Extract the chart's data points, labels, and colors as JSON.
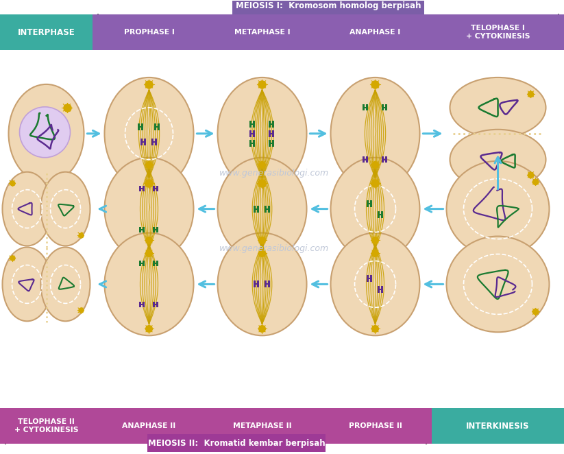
{
  "bg_color": "#ffffff",
  "meiosis1_label": "MEIOSIS I:  Kromosom homolog berpisah",
  "meiosis2_label": "MEIOSIS II:  Kromatid kembar berpisah",
  "interphase_color": "#3aaca0",
  "interkinesis_color": "#3aaca0",
  "phase_bar_color": "#8b5fb0",
  "phase_bar2_color": "#b04898",
  "phase_text_color": "#ffffff",
  "arrow_color": "#52bfe0",
  "cell_fill": "#f0d8b5",
  "cell_edge": "#c8a070",
  "nucleus_fill": "#e0ccf0",
  "nucleus_edge": "#c0a0d8",
  "spindle_color": "#c8a000",
  "chr_green": "#1a7a30",
  "chr_purple": "#5a2a90",
  "centrosome_color": "#d4a800",
  "watermark": "www.generasibiologi.com",
  "meiosis1_box_color": "#7b5ea7",
  "meiosis2_box_color": "#9e3a96",
  "top_phases": [
    "INTERPHASE",
    "PROPHASE I",
    "METAPHASE I",
    "ANAPHASE I",
    "TELOPHASE I\n+ CYTOKINESIS"
  ],
  "bottom_phases": [
    "TELOPHASE II\n+ CYTOKINESIS",
    "ANAPHASE II",
    "METAPHASE II",
    "PROPHASE II",
    "INTERKINESIS"
  ]
}
